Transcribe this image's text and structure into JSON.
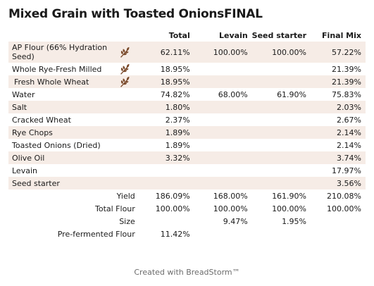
{
  "title": "Mixed Grain with Toasted OnionsFINAL",
  "columns": [
    "Total",
    "Levain",
    "Seed starter",
    "Final Mix"
  ],
  "rows": [
    {
      "name": "AP Flour (66% Hydration Seed)",
      "icon": "wheat-icon",
      "total": "62.11%",
      "levain": "100.00%",
      "seed": "100.00%",
      "final": "57.22%"
    },
    {
      "name": "Whole Rye-Fresh Milled",
      "icon": "wheat-icon",
      "total": "18.95%",
      "levain": "",
      "seed": "",
      "final": "21.39%"
    },
    {
      "name": "Fresh Whole Wheat",
      "icon": "wheat-icon",
      "total": "18.95%",
      "levain": "",
      "seed": "",
      "final": "21.39%"
    },
    {
      "name": "Water",
      "total": "74.82%",
      "levain": "68.00%",
      "seed": "61.90%",
      "final": "75.83%"
    },
    {
      "name": "Salt",
      "total": "1.80%",
      "levain": "",
      "seed": "",
      "final": "2.03%"
    },
    {
      "name": "Cracked Wheat",
      "total": "2.37%",
      "levain": "",
      "seed": "",
      "final": "2.67%"
    },
    {
      "name": "Rye Chops",
      "total": "1.89%",
      "levain": "",
      "seed": "",
      "final": "2.14%"
    },
    {
      "name": "Toasted Onions (Dried)",
      "total": "1.89%",
      "levain": "",
      "seed": "",
      "final": "2.14%"
    },
    {
      "name": "Olive Oil",
      "total": "3.32%",
      "levain": "",
      "seed": "",
      "final": "3.74%"
    },
    {
      "name": "Levain",
      "total": "",
      "levain": "",
      "seed": "",
      "final": "17.97%"
    },
    {
      "name": "Seed starter",
      "total": "",
      "levain": "",
      "seed": "",
      "final": "3.56%"
    }
  ],
  "summary": [
    {
      "label": "Yield",
      "total": "186.09%",
      "levain": "168.00%",
      "seed": "161.90%",
      "final": "210.08%"
    },
    {
      "label": "Total Flour",
      "total": "100.00%",
      "levain": "100.00%",
      "seed": "100.00%",
      "final": "100.00%"
    },
    {
      "label": "Size",
      "total": "",
      "levain": "9.47%",
      "seed": "1.95%",
      "final": ""
    },
    {
      "label": "Pre-fermented Flour",
      "total": "11.42%",
      "levain": "",
      "seed": "",
      "final": ""
    }
  ],
  "footer": "Created with BreadStorm™",
  "colors": {
    "row_alt": "#f6ece6",
    "wheat_icon": "#7a4a2b",
    "footer_text": "#6c6c6c"
  }
}
